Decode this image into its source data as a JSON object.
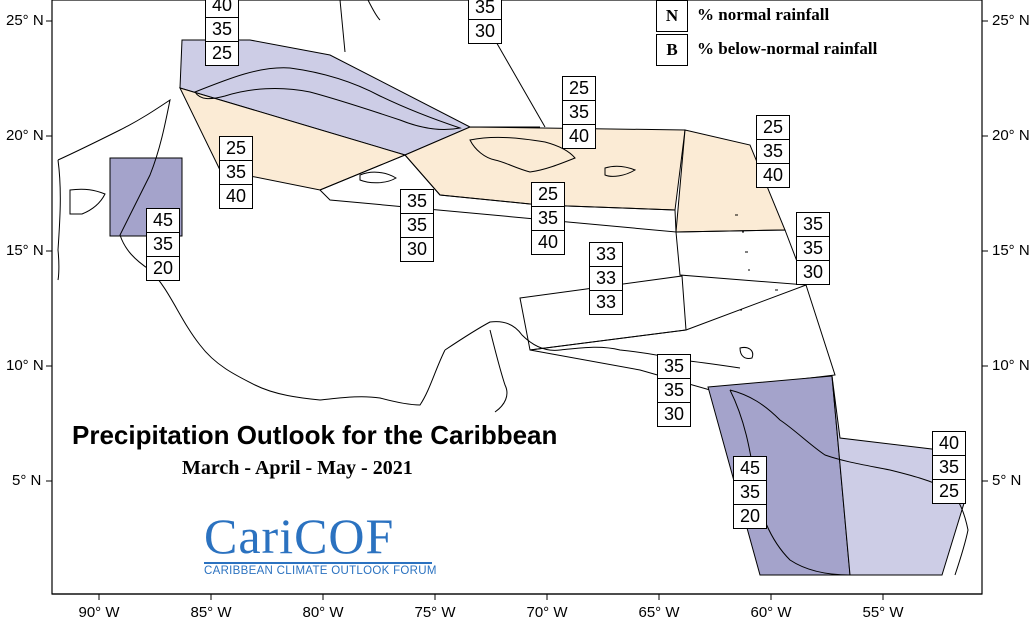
{
  "title": "Precipitation Outlook for the Caribbean",
  "subtitle": "March - April - May - 2021",
  "legend": [
    {
      "key": "N",
      "text": "% normal rainfall"
    },
    {
      "key": "B",
      "text": "% below-normal rainfall"
    }
  ],
  "latitude_labels": [
    "25° N",
    "20° N",
    "15° N",
    "10° N",
    "5° N"
  ],
  "longitude_labels": [
    "90° W",
    "85° W",
    "80° W",
    "75° W",
    "70° W",
    "65° W",
    "60° W",
    "55° W"
  ],
  "logo": {
    "name": "CariCOF",
    "tagline": "CARIBBEAN CLIMATE OUTLOOK FORUM"
  },
  "colors": {
    "strong_below": "#a4a3cb",
    "moderate_below": "#cdcde6",
    "above_tilt": "#fbebd5",
    "outline": "#000000"
  },
  "forecast_boxes": [
    {
      "id": "bahamas-west",
      "values": [
        "40",
        "35",
        "25"
      ]
    },
    {
      "id": "bahamas-east",
      "values": [
        "35",
        "30"
      ]
    },
    {
      "id": "cuba-west",
      "values": [
        "25",
        "35",
        "40"
      ]
    },
    {
      "id": "hispaniola-pr",
      "values": [
        "25",
        "35",
        "40"
      ]
    },
    {
      "id": "leeward-islands",
      "values": [
        "25",
        "35",
        "40"
      ]
    },
    {
      "id": "belize",
      "values": [
        "45",
        "35",
        "20"
      ]
    },
    {
      "id": "jamaica",
      "values": [
        "35",
        "35",
        "30"
      ]
    },
    {
      "id": "caribbean-sea-north",
      "values": [
        "25",
        "35",
        "40"
      ]
    },
    {
      "id": "windward-islands",
      "values": [
        "35",
        "35",
        "30"
      ]
    },
    {
      "id": "abc-islands",
      "values": [
        "33",
        "33",
        "33"
      ]
    },
    {
      "id": "trinidad",
      "values": [
        "35",
        "35",
        "30"
      ]
    },
    {
      "id": "guyana",
      "values": [
        "45",
        "35",
        "20"
      ]
    },
    {
      "id": "suriname-guiana",
      "values": [
        "40",
        "35",
        "25"
      ]
    }
  ]
}
